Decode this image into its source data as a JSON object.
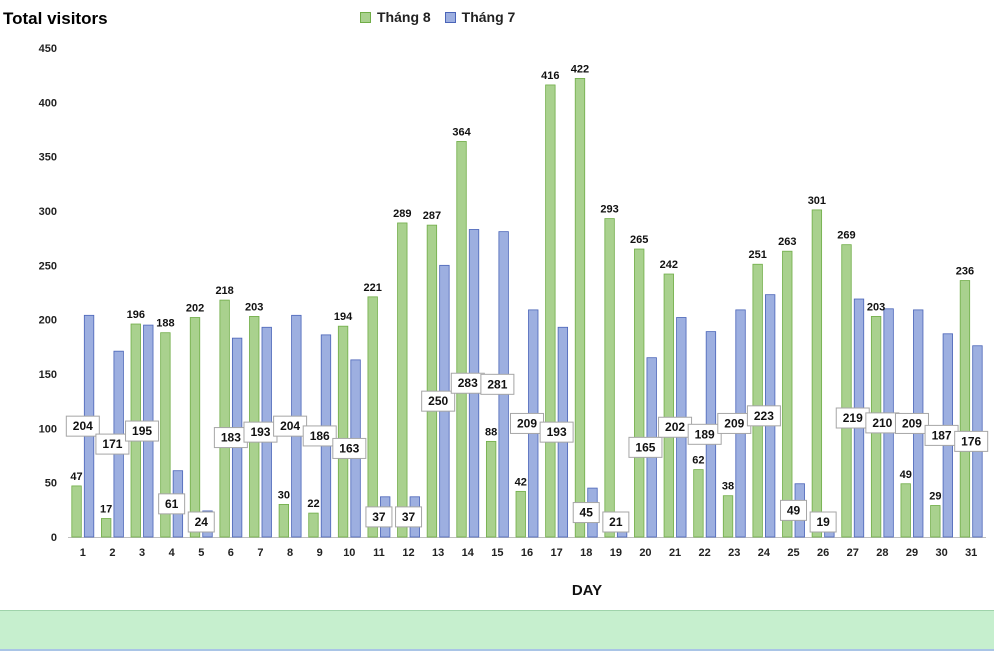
{
  "chart_data": {
    "type": "bar",
    "title": "Total visitors",
    "xlabel": "DAY",
    "ylabel": "",
    "ylim": [
      0,
      450
    ],
    "yticks": [
      0,
      50,
      100,
      150,
      200,
      250,
      300,
      350,
      400,
      450
    ],
    "grid": false,
    "legend_position": "top",
    "categories": [
      "1",
      "2",
      "3",
      "4",
      "5",
      "6",
      "7",
      "8",
      "9",
      "10",
      "11",
      "12",
      "13",
      "14",
      "15",
      "16",
      "17",
      "18",
      "19",
      "20",
      "21",
      "22",
      "23",
      "24",
      "25",
      "26",
      "27",
      "28",
      "29",
      "30",
      "31"
    ],
    "series": [
      {
        "name": "Tháng 8",
        "color": "#a9d18e",
        "stroke": "#70ad47",
        "values": [
          47,
          17,
          196,
          188,
          202,
          218,
          203,
          30,
          22,
          194,
          221,
          289,
          287,
          364,
          88,
          42,
          416,
          422,
          293,
          265,
          242,
          62,
          38,
          251,
          263,
          301,
          269,
          203,
          49,
          29,
          236
        ]
      },
      {
        "name": "Tháng 7",
        "color": "#9dafe0",
        "stroke": "#4a64b8",
        "values": [
          204,
          171,
          195,
          61,
          24,
          183,
          193,
          204,
          186,
          163,
          37,
          37,
          250,
          283,
          281,
          209,
          193,
          45,
          21,
          165,
          202,
          189,
          209,
          223,
          49,
          19,
          219,
          210,
          209,
          187,
          176
        ]
      }
    ]
  }
}
